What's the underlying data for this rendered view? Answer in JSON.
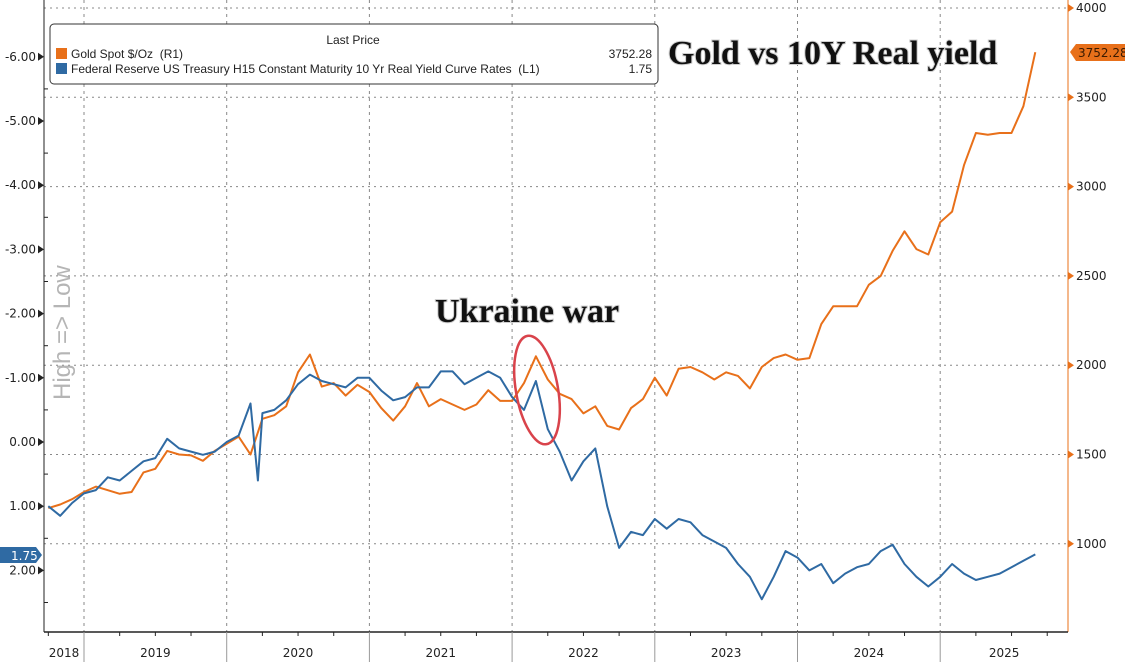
{
  "chart_data": {
    "type": "line",
    "title": "Gold vs 10Y Real yield",
    "annotation": "Ukraine war",
    "left_axis_label": "High => Low",
    "legend": {
      "header": "Last Price",
      "placement": "top-left",
      "entries": [
        {
          "name": "Gold Spot $/Oz  (R1)",
          "last": "3752.28",
          "color": "#e8701a"
        },
        {
          "name": "Federal Reserve US Treasury H15 Constant Maturity 10 Yr Real Yield Curve Rates  (L1)",
          "last": "1.75",
          "color": "#2f6aa3"
        }
      ]
    },
    "x_ticks": [
      "2018",
      "2019",
      "2020",
      "2021",
      "2022",
      "2023",
      "2024",
      "2025"
    ],
    "left_axis": {
      "inverted": true,
      "ylim": [
        -6.3,
        2.9
      ],
      "ticks": [
        "-6.00",
        "-5.00",
        "-4.00",
        "-3.00",
        "-2.00",
        "-1.00",
        "0.00",
        "1.00",
        "2.00"
      ]
    },
    "right_axis": {
      "ylim": [
        550,
        4000
      ],
      "ticks": [
        "4000",
        "3500",
        "3000",
        "2500",
        "2000",
        "1500",
        "1000"
      ]
    },
    "grid": true,
    "series": [
      {
        "name": "Gold Spot $/Oz  (R1)",
        "axis": "right",
        "color": "#e8701a",
        "points": [
          [
            "2018-10",
            1200
          ],
          [
            "2018-11",
            1220
          ],
          [
            "2018-12",
            1250
          ],
          [
            "2019-01",
            1290
          ],
          [
            "2019-02",
            1320
          ],
          [
            "2019-03",
            1300
          ],
          [
            "2019-04",
            1280
          ],
          [
            "2019-05",
            1290
          ],
          [
            "2019-06",
            1400
          ],
          [
            "2019-07",
            1420
          ],
          [
            "2019-08",
            1520
          ],
          [
            "2019-09",
            1500
          ],
          [
            "2019-10",
            1495
          ],
          [
            "2019-11",
            1465
          ],
          [
            "2019-12",
            1520
          ],
          [
            "2020-01",
            1560
          ],
          [
            "2020-02",
            1600
          ],
          [
            "2020-03",
            1500
          ],
          [
            "2020-04",
            1700
          ],
          [
            "2020-05",
            1720
          ],
          [
            "2020-06",
            1770
          ],
          [
            "2020-07",
            1960
          ],
          [
            "2020-08",
            2060
          ],
          [
            "2020-09",
            1880
          ],
          [
            "2020-10",
            1900
          ],
          [
            "2020-11",
            1830
          ],
          [
            "2020-12",
            1890
          ],
          [
            "2021-01",
            1850
          ],
          [
            "2021-02",
            1760
          ],
          [
            "2021-03",
            1690
          ],
          [
            "2021-04",
            1770
          ],
          [
            "2021-05",
            1900
          ],
          [
            "2021-06",
            1770
          ],
          [
            "2021-07",
            1810
          ],
          [
            "2021-08",
            1780
          ],
          [
            "2021-09",
            1750
          ],
          [
            "2021-10",
            1780
          ],
          [
            "2021-11",
            1860
          ],
          [
            "2021-12",
            1800
          ],
          [
            "2022-01",
            1800
          ],
          [
            "2022-02",
            1900
          ],
          [
            "2022-03",
            2050
          ],
          [
            "2022-04",
            1920
          ],
          [
            "2022-05",
            1840
          ],
          [
            "2022-06",
            1810
          ],
          [
            "2022-07",
            1730
          ],
          [
            "2022-08",
            1770
          ],
          [
            "2022-09",
            1660
          ],
          [
            "2022-10",
            1640
          ],
          [
            "2022-11",
            1760
          ],
          [
            "2022-12",
            1810
          ],
          [
            "2023-01",
            1930
          ],
          [
            "2023-02",
            1830
          ],
          [
            "2023-03",
            1980
          ],
          [
            "2023-04",
            1990
          ],
          [
            "2023-05",
            1960
          ],
          [
            "2023-06",
            1920
          ],
          [
            "2023-07",
            1960
          ],
          [
            "2023-08",
            1940
          ],
          [
            "2023-09",
            1870
          ],
          [
            "2023-10",
            1990
          ],
          [
            "2023-11",
            2040
          ],
          [
            "2023-12",
            2060
          ],
          [
            "2024-01",
            2030
          ],
          [
            "2024-02",
            2040
          ],
          [
            "2024-03",
            2230
          ],
          [
            "2024-04",
            2330
          ],
          [
            "2024-05",
            2330
          ],
          [
            "2024-06",
            2330
          ],
          [
            "2024-07",
            2450
          ],
          [
            "2024-08",
            2500
          ],
          [
            "2024-09",
            2640
          ],
          [
            "2024-10",
            2750
          ],
          [
            "2024-11",
            2650
          ],
          [
            "2024-12",
            2620
          ],
          [
            "2025-01",
            2800
          ],
          [
            "2025-02",
            2860
          ],
          [
            "2025-03",
            3120
          ],
          [
            "2025-04",
            3300
          ],
          [
            "2025-05",
            3290
          ],
          [
            "2025-06",
            3300
          ],
          [
            "2025-07",
            3300
          ],
          [
            "2025-08",
            3450
          ],
          [
            "2025-09",
            3752.28
          ]
        ]
      },
      {
        "name": "Federal Reserve US Treasury H15 Constant Maturity 10 Yr Real Yield Curve Rates  (L1)",
        "axis": "left",
        "color": "#2f6aa3",
        "points": [
          [
            "2018-10",
            1.0
          ],
          [
            "2018-11",
            1.15
          ],
          [
            "2018-12",
            0.95
          ],
          [
            "2019-01",
            0.8
          ],
          [
            "2019-02",
            0.75
          ],
          [
            "2019-03",
            0.55
          ],
          [
            "2019-04",
            0.6
          ],
          [
            "2019-05",
            0.45
          ],
          [
            "2019-06",
            0.3
          ],
          [
            "2019-07",
            0.25
          ],
          [
            "2019-08",
            -0.05
          ],
          [
            "2019-09",
            0.1
          ],
          [
            "2019-10",
            0.15
          ],
          [
            "2019-11",
            0.2
          ],
          [
            "2019-12",
            0.15
          ],
          [
            "2020-01",
            0.0
          ],
          [
            "2020-02",
            -0.1
          ],
          [
            "2020-03",
            -0.6
          ],
          [
            "2020-03-20",
            0.6
          ],
          [
            "2020-04",
            -0.45
          ],
          [
            "2020-05",
            -0.5
          ],
          [
            "2020-06",
            -0.65
          ],
          [
            "2020-07",
            -0.9
          ],
          [
            "2020-08",
            -1.05
          ],
          [
            "2020-09",
            -0.95
          ],
          [
            "2020-10",
            -0.9
          ],
          [
            "2020-11",
            -0.85
          ],
          [
            "2020-12",
            -1.0
          ],
          [
            "2021-01",
            -1.0
          ],
          [
            "2021-02",
            -0.8
          ],
          [
            "2021-03",
            -0.65
          ],
          [
            "2021-04",
            -0.7
          ],
          [
            "2021-05",
            -0.85
          ],
          [
            "2021-06",
            -0.85
          ],
          [
            "2021-07",
            -1.1
          ],
          [
            "2021-08",
            -1.1
          ],
          [
            "2021-09",
            -0.9
          ],
          [
            "2021-10",
            -1.0
          ],
          [
            "2021-11",
            -1.1
          ],
          [
            "2021-12",
            -1.0
          ],
          [
            "2022-01",
            -0.7
          ],
          [
            "2022-02",
            -0.5
          ],
          [
            "2022-03",
            -0.95
          ],
          [
            "2022-04",
            -0.2
          ],
          [
            "2022-05",
            0.15
          ],
          [
            "2022-06",
            0.6
          ],
          [
            "2022-07",
            0.3
          ],
          [
            "2022-08",
            0.1
          ],
          [
            "2022-09",
            1.0
          ],
          [
            "2022-10",
            1.65
          ],
          [
            "2022-11",
            1.4
          ],
          [
            "2022-12",
            1.45
          ],
          [
            "2023-01",
            1.2
          ],
          [
            "2023-02",
            1.35
          ],
          [
            "2023-03",
            1.2
          ],
          [
            "2023-04",
            1.25
          ],
          [
            "2023-05",
            1.45
          ],
          [
            "2023-06",
            1.55
          ],
          [
            "2023-07",
            1.65
          ],
          [
            "2023-08",
            1.9
          ],
          [
            "2023-09",
            2.1
          ],
          [
            "2023-10",
            2.45
          ],
          [
            "2023-11",
            2.1
          ],
          [
            "2023-12",
            1.7
          ],
          [
            "2024-01",
            1.8
          ],
          [
            "2024-02",
            2.0
          ],
          [
            "2024-03",
            1.9
          ],
          [
            "2024-04",
            2.2
          ],
          [
            "2024-05",
            2.05
          ],
          [
            "2024-06",
            1.95
          ],
          [
            "2024-07",
            1.9
          ],
          [
            "2024-08",
            1.7
          ],
          [
            "2024-09",
            1.6
          ],
          [
            "2024-10",
            1.9
          ],
          [
            "2024-11",
            2.1
          ],
          [
            "2024-12",
            2.25
          ],
          [
            "2025-01",
            2.1
          ],
          [
            "2025-02",
            1.9
          ],
          [
            "2025-03",
            2.05
          ],
          [
            "2025-04",
            2.15
          ],
          [
            "2025-05",
            2.1
          ],
          [
            "2025-06",
            2.05
          ],
          [
            "2025-07",
            1.95
          ],
          [
            "2025-08",
            1.85
          ],
          [
            "2025-09",
            1.75
          ]
        ]
      }
    ]
  }
}
